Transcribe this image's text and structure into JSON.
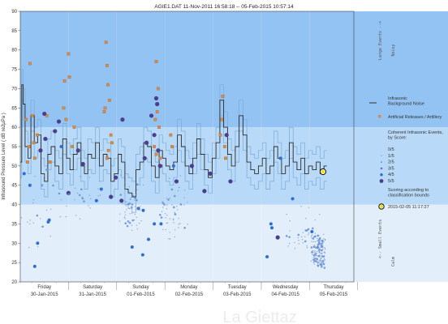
{
  "chart_data": {
    "type": "line",
    "title": "AGIE1.DAT   11-Nov-2011 16:58:18   --   05-Feb-2015 10:57:14",
    "ylabel": "Infrasound Pressure Level  ( dB re2µPa )",
    "ylim": [
      20,
      90
    ],
    "yticks": [
      20,
      25,
      30,
      35,
      40,
      45,
      50,
      55,
      60,
      65,
      70,
      75,
      80,
      85,
      90
    ],
    "xlim": [
      0,
      6.92
    ],
    "day_labels": [
      {
        "day": "Friday",
        "date": "30-Jan-2015"
      },
      {
        "day": "Saturday",
        "date": "31-Jan-2015"
      },
      {
        "day": "Sunday",
        "date": "01-Feb-2015"
      },
      {
        "day": "Monday",
        "date": "02-Feb-2015"
      },
      {
        "day": "Tuesday",
        "date": "03-Feb-2015"
      },
      {
        "day": "Wednesday",
        "date": "04-Feb-2015"
      },
      {
        "day": "Thursday",
        "date": "05-Feb-2015"
      }
    ],
    "bands": [
      {
        "from": 60,
        "to": 90,
        "color": "#93c3f2",
        "right_label": "Large Events  -->",
        "right_label2": "Noisy"
      },
      {
        "from": 40,
        "to": 60,
        "color": "#b8d9f7"
      },
      {
        "from": 20,
        "to": 40,
        "color": "#e3eefb",
        "right_label": "<--  Small Events",
        "right_label2": "Calm"
      }
    ],
    "background_noise": {
      "name": "Infrasonic Background Noise",
      "color": "#2b2b2b",
      "x": [
        0,
        0.03,
        0.06,
        0.1,
        0.16,
        0.22,
        0.29,
        0.36,
        0.43,
        0.5,
        0.57,
        0.64,
        0.72,
        0.8,
        0.88,
        0.96,
        1.03,
        1.1,
        1.18,
        1.26,
        1.33,
        1.4,
        1.48,
        1.56,
        1.64,
        1.72,
        1.8,
        1.88,
        1.95,
        2.03,
        2.1,
        2.17,
        2.24,
        2.32,
        2.4,
        2.48,
        2.56,
        2.64,
        2.72,
        2.8,
        2.88,
        2.95,
        3.02,
        3.1,
        3.18,
        3.26,
        3.34,
        3.42,
        3.5,
        3.58,
        3.66,
        3.74,
        3.82,
        3.9,
        3.98,
        4.06,
        4.14,
        4.22,
        4.3,
        4.38,
        4.46,
        4.54,
        4.62,
        4.7,
        4.78,
        4.86,
        4.94,
        5.02,
        5.1,
        5.18,
        5.26,
        5.34,
        5.42,
        5.5,
        5.58,
        5.66,
        5.74,
        5.82,
        5.9,
        5.98,
        6.06,
        6.14,
        6.22,
        6.3
      ],
      "y": [
        51,
        71,
        66,
        55,
        52,
        63,
        56,
        58,
        48,
        46,
        53,
        55,
        50,
        48,
        57,
        52,
        49,
        53,
        56,
        50,
        48,
        53,
        52,
        56,
        50,
        53,
        52,
        46,
        48,
        53,
        51,
        44,
        43,
        42,
        49,
        51,
        56,
        55,
        50,
        47,
        54,
        52,
        50,
        49,
        51,
        58,
        55,
        50,
        48,
        52,
        57,
        53,
        49,
        47,
        52,
        56,
        67,
        60,
        53,
        50,
        55,
        63,
        58,
        51,
        49,
        48,
        50,
        52,
        48,
        50,
        55,
        52,
        48,
        50,
        56,
        51,
        49,
        52,
        48,
        50,
        49,
        51,
        48,
        50
      ]
    },
    "noise_envelope": {
      "color": "#7aaad8",
      "upper_offset": 4,
      "lower_offset": -4
    },
    "artificial_releases": {
      "name": "Artificial Releases / Artillery",
      "color": "#d98a45",
      "points": [
        [
          0.2,
          76.5
        ],
        [
          0.25,
          63
        ],
        [
          0.3,
          52
        ],
        [
          0.12,
          62
        ],
        [
          0.18,
          55
        ],
        [
          0.35,
          58
        ],
        [
          0.55,
          63
        ],
        [
          0.62,
          51
        ],
        [
          0.15,
          51
        ],
        [
          0.28,
          56
        ],
        [
          0.9,
          65
        ],
        [
          0.92,
          72
        ],
        [
          1.0,
          79
        ],
        [
          1.02,
          73
        ],
        [
          1.08,
          55
        ],
        [
          0.95,
          62
        ],
        [
          1.12,
          60
        ],
        [
          1.78,
          82
        ],
        [
          1.8,
          76
        ],
        [
          1.82,
          71
        ],
        [
          1.85,
          67
        ],
        [
          1.76,
          65
        ],
        [
          1.74,
          64
        ],
        [
          1.88,
          58
        ],
        [
          1.83,
          54
        ],
        [
          1.9,
          56
        ],
        [
          1.8,
          52
        ],
        [
          2.82,
          77
        ],
        [
          2.86,
          70
        ],
        [
          2.84,
          64
        ],
        [
          2.8,
          62
        ],
        [
          2.88,
          60
        ],
        [
          2.78,
          55
        ],
        [
          2.82,
          53
        ],
        [
          2.9,
          52
        ],
        [
          2.92,
          50
        ],
        [
          3.12,
          58
        ],
        [
          3.15,
          55
        ],
        [
          4.2,
          68
        ],
        [
          4.18,
          62
        ],
        [
          4.24,
          55
        ],
        [
          4.26,
          52
        ],
        [
          4.15,
          58
        ]
      ]
    },
    "coherent_events": {
      "name": "Coherent Infrasonic Events, by Score:",
      "color": "#5a62b8",
      "points": [
        [
          0.2,
          45
        ],
        [
          0.08,
          48
        ],
        [
          0.45,
          45
        ],
        [
          0.55,
          49
        ],
        [
          0.85,
          55
        ],
        [
          0.6,
          36
        ],
        [
          0.58,
          35.5
        ],
        [
          1.0,
          43
        ],
        [
          1.3,
          50.5
        ],
        [
          1.2,
          54
        ],
        [
          0.72,
          59
        ],
        [
          0.5,
          63.5
        ],
        [
          0.8,
          61.5
        ],
        [
          0.52,
          57
        ],
        [
          0.42,
          54
        ],
        [
          1.68,
          44
        ],
        [
          1.58,
          41
        ],
        [
          1.88,
          42
        ],
        [
          1.98,
          47
        ],
        [
          2.1,
          41
        ],
        [
          2.12,
          62
        ],
        [
          2.72,
          63
        ],
        [
          2.82,
          67.5
        ],
        [
          2.84,
          66
        ],
        [
          2.78,
          58
        ],
        [
          2.86,
          54
        ],
        [
          2.9,
          50
        ],
        [
          2.62,
          56
        ],
        [
          2.58,
          52
        ],
        [
          2.45,
          39
        ],
        [
          2.55,
          38.5
        ],
        [
          3.18,
          50
        ],
        [
          3.24,
          46
        ],
        [
          3.56,
          50
        ],
        [
          3.94,
          48
        ],
        [
          3.82,
          43.5
        ],
        [
          4.28,
          58
        ],
        [
          4.36,
          46
        ],
        [
          5.2,
          35
        ],
        [
          5.22,
          34
        ],
        [
          5.12,
          26.5
        ],
        [
          5.34,
          31.5
        ],
        [
          5.4,
          52
        ],
        [
          5.65,
          41.5
        ],
        [
          6.05,
          33
        ],
        [
          0.36,
          30
        ],
        [
          2.32,
          29
        ],
        [
          2.54,
          27
        ],
        [
          2.66,
          31
        ],
        [
          2.78,
          35
        ],
        [
          2.92,
          35
        ],
        [
          0.3,
          24
        ]
      ],
      "scores": [
        4,
        4,
        3,
        3,
        4,
        4,
        4,
        5,
        5,
        5,
        5,
        5,
        5,
        5,
        5,
        4,
        4,
        5,
        5,
        5,
        5,
        5,
        5,
        5,
        5,
        5,
        5,
        5,
        5,
        4,
        4,
        4,
        5,
        5,
        5,
        5,
        5,
        5,
        4,
        4,
        4,
        5,
        4,
        4,
        4,
        4,
        4,
        4,
        4,
        4,
        4,
        4
      ]
    },
    "latest_point": {
      "x": 6.28,
      "y": 48.5,
      "label": "2015-02-05 11:17:27"
    },
    "legend": {
      "background_noise": "Infrasonic\nBackground Noise",
      "artificial": "Artificial Releases / Artillery",
      "coherent_title": "Coherent Infrasonic Events,\nby Score:",
      "scores": [
        "0/5",
        "1/5",
        "2/5",
        "3/5",
        "4/5",
        "5/5"
      ],
      "scoring_note": "Scoring according to\nclassification bounds",
      "latest_label": "2015-02-05 11:17:27"
    },
    "watermark": "La Giettaz"
  }
}
